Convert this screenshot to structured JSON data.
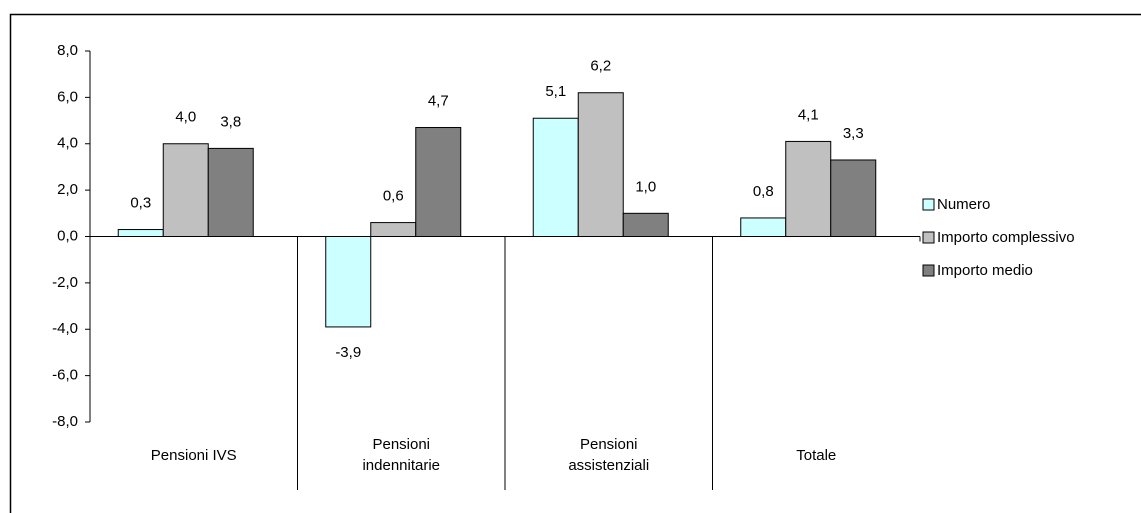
{
  "chart_data": {
    "type": "bar",
    "categories": [
      "Pensioni IVS",
      "Pensioni indennitarie",
      "Pensioni assistenziali",
      "Totale"
    ],
    "series": [
      {
        "name": "Numero",
        "color": "#ccffff",
        "values": [
          0.3,
          -3.9,
          5.1,
          0.8
        ],
        "value_labels": [
          "0,3",
          "-3,9",
          "5,1",
          "0,8"
        ]
      },
      {
        "name": "Importo complessivo",
        "color": "#c0c0c0",
        "values": [
          4.0,
          0.6,
          6.2,
          4.1
        ],
        "value_labels": [
          "4,0",
          "0,6",
          "6,2",
          "4,1"
        ]
      },
      {
        "name": "Importo medio",
        "color": "#808080",
        "values": [
          3.8,
          4.7,
          1.0,
          3.3
        ],
        "value_labels": [
          "3,8",
          "4,7",
          "1,0",
          "3,3"
        ]
      }
    ],
    "ylim": [
      -8,
      8
    ],
    "yticks": [
      {
        "value": -8,
        "label": "-8,0"
      },
      {
        "value": -6,
        "label": "-6,0"
      },
      {
        "value": -4,
        "label": "-4,0"
      },
      {
        "value": -2,
        "label": "-2,0"
      },
      {
        "value": 0,
        "label": "0,0"
      },
      {
        "value": 2,
        "label": "2,0"
      },
      {
        "value": 4,
        "label": "4,0"
      },
      {
        "value": 6,
        "label": "6,0"
      },
      {
        "value": 8,
        "label": "8,0"
      }
    ],
    "legend": "right"
  }
}
